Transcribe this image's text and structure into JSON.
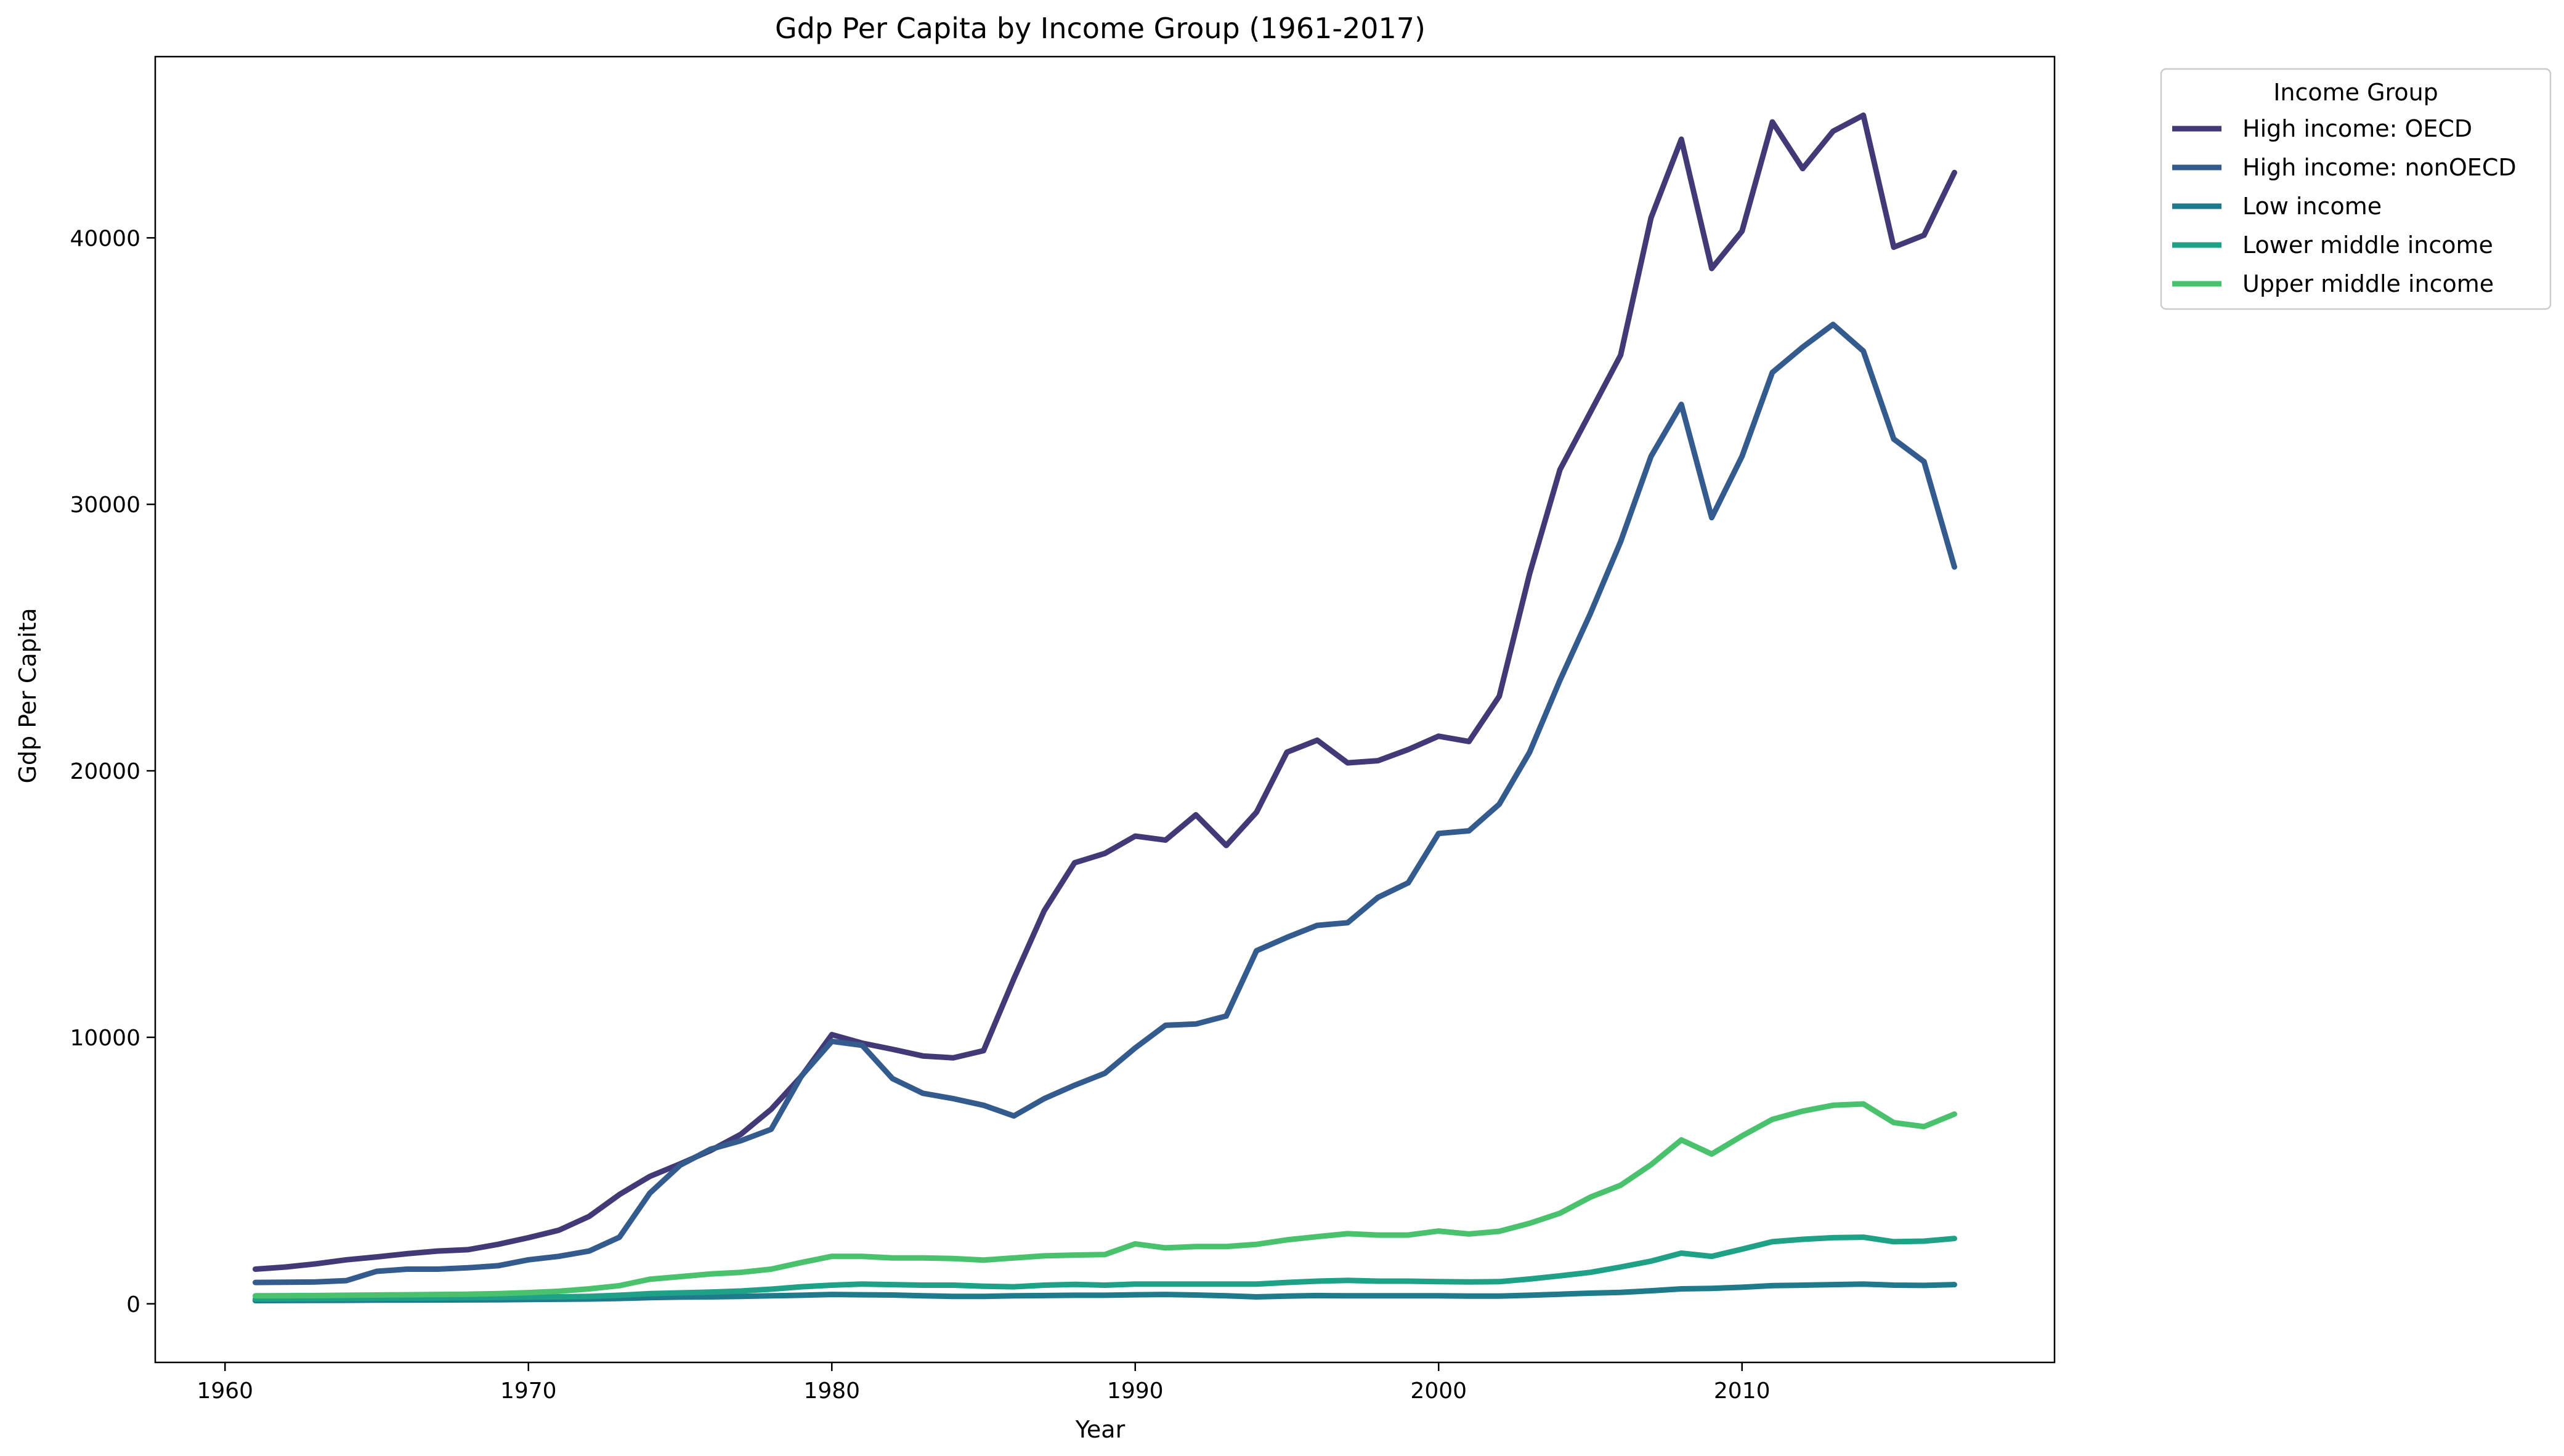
{
  "chart_data": {
    "type": "line",
    "title": "Gdp Per Capita by Income Group (1961-2017)",
    "xlabel": "Year",
    "ylabel": "Gdp Per Capita",
    "xlim": [
      1957.7,
      2020.3
    ],
    "ylim": [
      -2200,
      46800
    ],
    "xticks": [
      1960,
      1970,
      1980,
      1990,
      2000,
      2010
    ],
    "yticks": [
      0,
      10000,
      20000,
      30000,
      40000
    ],
    "grid": false,
    "legend": {
      "title": "Income Group",
      "placement": "outside-top-right"
    },
    "x": [
      1961,
      1962,
      1963,
      1964,
      1965,
      1966,
      1967,
      1968,
      1969,
      1970,
      1971,
      1972,
      1973,
      1974,
      1975,
      1976,
      1977,
      1978,
      1979,
      1980,
      1981,
      1982,
      1983,
      1984,
      1985,
      1986,
      1987,
      1988,
      1989,
      1990,
      1991,
      1992,
      1993,
      1994,
      1995,
      1996,
      1997,
      1998,
      1999,
      2000,
      2001,
      2002,
      2003,
      2004,
      2005,
      2006,
      2007,
      2008,
      2009,
      2010,
      2011,
      2012,
      2013,
      2014,
      2015,
      2016,
      2017
    ],
    "series": [
      {
        "name": "High income: OECD",
        "color": "#423a77",
        "values": [
          1300,
          1380,
          1500,
          1650,
          1760,
          1880,
          1980,
          2030,
          2230,
          2480,
          2760,
          3280,
          4100,
          4780,
          5250,
          5750,
          6360,
          7300,
          8540,
          10100,
          9780,
          9550,
          9300,
          9230,
          9500,
          12200,
          14750,
          16550,
          16900,
          17550,
          17400,
          18350,
          17200,
          18450,
          20700,
          21150,
          20300,
          20380,
          20800,
          21300,
          21100,
          22800,
          27400,
          31300,
          33450,
          35600,
          40750,
          43700,
          38850,
          40250,
          44350,
          42600,
          44000,
          44600,
          39650,
          40100,
          42450
        ]
      },
      {
        "name": "High income: nonOECD",
        "color": "#335b8e",
        "values": [
          800,
          810,
          820,
          870,
          1220,
          1300,
          1300,
          1350,
          1430,
          1650,
          1780,
          1980,
          2500,
          4150,
          5200,
          5800,
          6120,
          6550,
          8550,
          9850,
          9700,
          8450,
          7900,
          7700,
          7450,
          7050,
          7700,
          8200,
          8650,
          9600,
          10450,
          10500,
          10800,
          13250,
          13750,
          14200,
          14300,
          15250,
          15800,
          17650,
          17750,
          18750,
          20700,
          23400,
          25900,
          28600,
          31800,
          33750,
          29500,
          31800,
          34950,
          35900,
          36750,
          35750,
          32450,
          31600,
          27650
        ]
      },
      {
        "name": "Low income",
        "color": "#1f7a8c",
        "values": [
          120,
          125,
          128,
          132,
          138,
          140,
          142,
          148,
          152,
          160,
          170,
          180,
          200,
          230,
          250,
          260,
          280,
          300,
          320,
          350,
          340,
          330,
          300,
          280,
          280,
          300,
          310,
          320,
          320,
          340,
          350,
          330,
          300,
          260,
          290,
          310,
          300,
          300,
          300,
          300,
          290,
          290,
          320,
          360,
          400,
          430,
          490,
          560,
          580,
          620,
          680,
          700,
          720,
          740,
          700,
          690,
          720
        ]
      },
      {
        "name": "Lower middle income",
        "color": "#1fa187",
        "values": [
          180,
          185,
          190,
          195,
          205,
          215,
          220,
          230,
          240,
          250,
          260,
          280,
          320,
          380,
          410,
          440,
          480,
          550,
          640,
          700,
          740,
          720,
          700,
          700,
          660,
          640,
          700,
          730,
          700,
          740,
          740,
          740,
          740,
          740,
          800,
          850,
          880,
          850,
          850,
          830,
          820,
          830,
          930,
          1050,
          1180,
          1380,
          1600,
          1900,
          1780,
          2050,
          2330,
          2420,
          2480,
          2500,
          2330,
          2350,
          2450
        ]
      },
      {
        "name": "Upper middle income",
        "color": "#4ac16d",
        "values": [
          300,
          305,
          310,
          320,
          330,
          340,
          350,
          360,
          380,
          420,
          470,
          560,
          680,
          920,
          1020,
          1120,
          1180,
          1300,
          1550,
          1780,
          1780,
          1720,
          1720,
          1700,
          1640,
          1720,
          1800,
          1830,
          1850,
          2250,
          2100,
          2150,
          2150,
          2230,
          2400,
          2520,
          2630,
          2580,
          2580,
          2730,
          2620,
          2720,
          3020,
          3400,
          4000,
          4450,
          5220,
          6150,
          5620,
          6300,
          6920,
          7230,
          7450,
          7500,
          6800,
          6650,
          7120
        ]
      }
    ]
  }
}
